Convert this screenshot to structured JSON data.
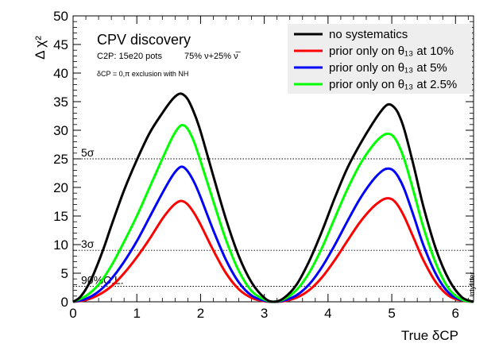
{
  "chart_data": {
    "type": "line",
    "title": "CPV discovery",
    "subtitle_line1_left": "C2P: 15e20 pots",
    "subtitle_line1_right": "75% ν+25% ν̅",
    "subtitle_line2": "δCP = 0,π exclusion with NH",
    "ylabel": "Δ χ²",
    "xlabel": "True δCP",
    "xlim": [
      0,
      6.2832
    ],
    "ylim": [
      0,
      50
    ],
    "xticks": [
      "0",
      "1",
      "2",
      "3",
      "4",
      "5",
      "6"
    ],
    "yticks": [
      "0",
      "5",
      "10",
      "15",
      "20",
      "25",
      "30",
      "35",
      "40",
      "45",
      "50"
    ],
    "watermark": "myfitter",
    "reference_lines": [
      {
        "label": "5σ",
        "value": 25
      },
      {
        "label": "3σ",
        "value": 9
      },
      {
        "label": "90%C.L.",
        "value": 2.71
      }
    ],
    "series": [
      {
        "name": "no systematics",
        "color": "#000000",
        "x": [
          0,
          0.1,
          0.2,
          0.3,
          0.4,
          0.5,
          0.6,
          0.8,
          1.0,
          1.2,
          1.4,
          1.55,
          1.65,
          1.72,
          1.8,
          1.9,
          2.0,
          2.2,
          2.4,
          2.6,
          2.8,
          3.0,
          3.1416,
          3.3,
          3.5,
          3.7,
          3.9,
          4.1,
          4.3,
          4.5,
          4.7,
          4.85,
          4.94,
          5.02,
          5.1,
          5.2,
          5.35,
          5.5,
          5.7,
          5.9,
          6.1,
          6.2832
        ],
        "y": [
          0,
          0.7,
          2.2,
          4.3,
          7.0,
          10.0,
          13.3,
          19.5,
          24.8,
          29.5,
          33.0,
          35.3,
          36.3,
          36.3,
          35.4,
          33.0,
          29.8,
          22.0,
          14.4,
          8.0,
          3.4,
          0.7,
          0,
          0.6,
          2.9,
          7.0,
          12.2,
          18.0,
          23.3,
          27.5,
          31.2,
          33.6,
          34.5,
          34.2,
          33.0,
          30.0,
          23.5,
          16.5,
          9.0,
          3.8,
          0.8,
          0
        ]
      },
      {
        "name": "prior only on θ₁₃ at 10%",
        "color": "#ff0000",
        "x": [
          0,
          0.2,
          0.4,
          0.6,
          0.8,
          1.0,
          1.2,
          1.4,
          1.55,
          1.65,
          1.72,
          1.8,
          1.9,
          2.0,
          2.2,
          2.4,
          2.6,
          2.8,
          3.0,
          3.1416,
          3.3,
          3.5,
          3.7,
          3.9,
          4.1,
          4.3,
          4.5,
          4.7,
          4.85,
          4.94,
          5.02,
          5.1,
          5.2,
          5.35,
          5.5,
          5.7,
          5.9,
          6.1,
          6.2832
        ],
        "y": [
          0,
          0.3,
          1.2,
          2.7,
          5.0,
          7.8,
          11.0,
          14.5,
          16.6,
          17.5,
          17.6,
          17.0,
          15.5,
          13.5,
          9.0,
          5.0,
          2.2,
          0.7,
          0.1,
          0,
          0.1,
          0.7,
          2.0,
          4.2,
          7.2,
          10.6,
          13.9,
          16.5,
          17.8,
          18.1,
          17.8,
          16.8,
          14.8,
          11.0,
          7.2,
          3.3,
          1.0,
          0.2,
          0
        ]
      },
      {
        "name": "prior only on θ₁₃ at 5%",
        "color": "#0000ff",
        "x": [
          0,
          0.2,
          0.4,
          0.6,
          0.8,
          1.0,
          1.2,
          1.4,
          1.55,
          1.65,
          1.72,
          1.8,
          1.9,
          2.0,
          2.2,
          2.4,
          2.6,
          2.8,
          3.0,
          3.1416,
          3.3,
          3.5,
          3.7,
          3.9,
          4.1,
          4.3,
          4.5,
          4.7,
          4.85,
          4.94,
          5.02,
          5.1,
          5.2,
          5.35,
          5.5,
          5.7,
          5.9,
          6.1,
          6.2832
        ],
        "y": [
          0,
          0.5,
          1.8,
          4.0,
          7.0,
          10.6,
          14.8,
          19.0,
          21.9,
          23.3,
          23.6,
          22.8,
          20.9,
          18.3,
          12.5,
          7.3,
          3.4,
          1.1,
          0.2,
          0,
          0.2,
          1.1,
          3.0,
          6.0,
          9.8,
          14.0,
          18.0,
          21.2,
          22.9,
          23.3,
          23.0,
          21.9,
          19.6,
          14.8,
          9.8,
          4.7,
          1.5,
          0.3,
          0
        ]
      },
      {
        "name": "prior only on θ₁₃ at 2.5%",
        "color": "#00ff00",
        "x": [
          0,
          0.2,
          0.4,
          0.6,
          0.8,
          1.0,
          1.2,
          1.4,
          1.55,
          1.65,
          1.72,
          1.8,
          1.9,
          2.0,
          2.2,
          2.4,
          2.6,
          2.8,
          3.0,
          3.1416,
          3.3,
          3.5,
          3.7,
          3.9,
          4.1,
          4.3,
          4.5,
          4.7,
          4.85,
          4.94,
          5.02,
          5.1,
          5.2,
          5.35,
          5.5,
          5.7,
          5.9,
          6.1,
          6.2832
        ],
        "y": [
          0,
          1.0,
          3.0,
          6.3,
          10.5,
          15.0,
          20.0,
          25.0,
          28.6,
          30.4,
          30.9,
          30.2,
          27.9,
          24.6,
          17.6,
          10.8,
          5.4,
          1.9,
          0.4,
          0,
          0.4,
          2.0,
          5.0,
          9.3,
          14.5,
          19.6,
          24.0,
          27.3,
          29.0,
          29.4,
          29.0,
          27.6,
          24.8,
          19.0,
          12.9,
          6.5,
          2.2,
          0.4,
          0
        ]
      }
    ]
  }
}
